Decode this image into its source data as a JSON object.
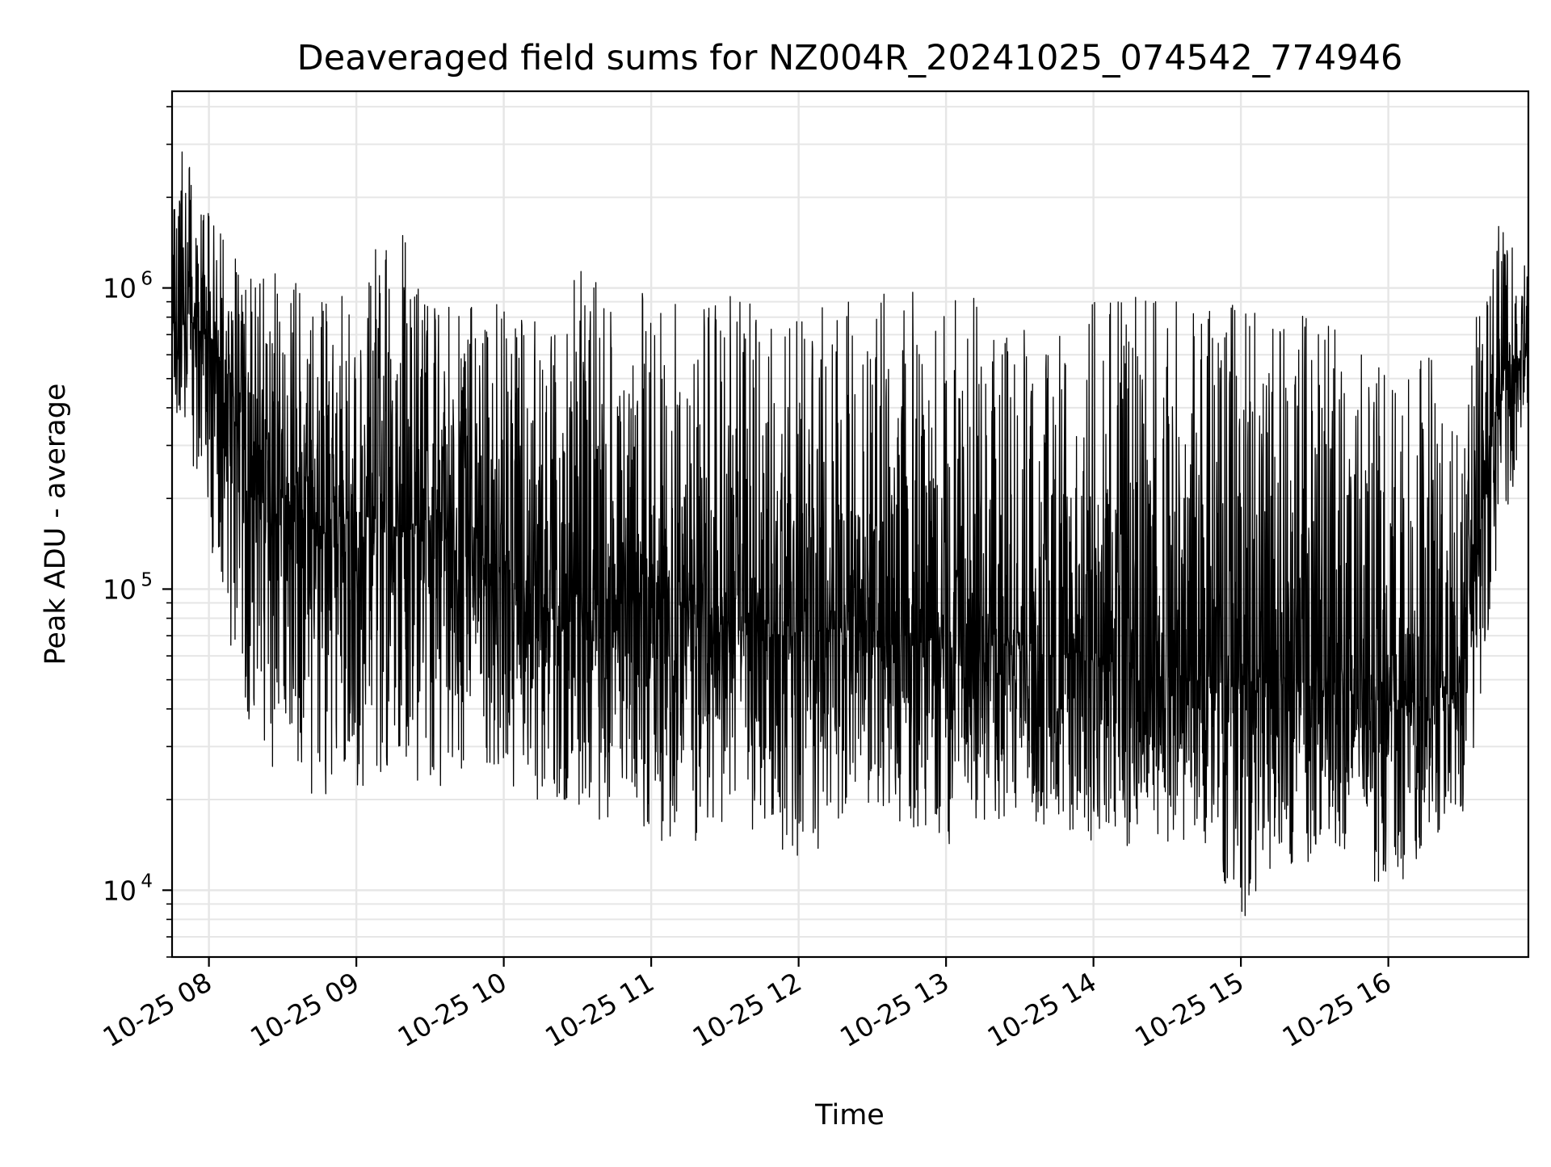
{
  "chart_data": {
    "type": "line",
    "title": "Deaveraged field sums for NZ004R_20241025_074542_774946",
    "xlabel": "Time",
    "ylabel": "Peak ADU - average",
    "xlim": [
      "2024-10-25 07:45",
      "2024-10-25 16:57"
    ],
    "yscale": "log",
    "ylim": [
      6000,
      4500000
    ],
    "grid": true,
    "legend": "none",
    "colors": {
      "line": "#000000",
      "grid": "#e6e6e6",
      "frame": "#000000",
      "background": "#ffffff"
    },
    "x_ticks": [
      {
        "t": "2024-10-25 08:00",
        "label": "10-25 08"
      },
      {
        "t": "2024-10-25 09:00",
        "label": "10-25 09"
      },
      {
        "t": "2024-10-25 10:00",
        "label": "10-25 10"
      },
      {
        "t": "2024-10-25 11:00",
        "label": "10-25 11"
      },
      {
        "t": "2024-10-25 12:00",
        "label": "10-25 12"
      },
      {
        "t": "2024-10-25 13:00",
        "label": "10-25 13"
      },
      {
        "t": "2024-10-25 14:00",
        "label": "10-25 14"
      },
      {
        "t": "2024-10-25 15:00",
        "label": "10-25 15"
      },
      {
        "t": "2024-10-25 16:00",
        "label": "10-25 16"
      }
    ],
    "y_ticks": [
      {
        "value": 10000,
        "base": "10",
        "exp": "4"
      },
      {
        "value": 100000,
        "base": "10",
        "exp": "5"
      },
      {
        "value": 1000000,
        "base": "10",
        "exp": "6"
      }
    ],
    "series": [
      {
        "x": [
          "2024-10-25 07:45",
          "2024-10-25 08:00",
          "2024-10-25 08:15",
          "2024-10-25 08:30",
          "2024-10-25 08:45",
          "2024-10-25 09:00",
          "2024-10-25 09:15",
          "2024-10-25 09:30",
          "2024-10-25 09:45",
          "2024-10-25 10:00",
          "2024-10-25 10:15",
          "2024-10-25 10:30",
          "2024-10-25 10:45",
          "2024-10-25 11:00",
          "2024-10-25 11:15",
          "2024-10-25 11:30",
          "2024-10-25 11:45",
          "2024-10-25 12:00",
          "2024-10-25 12:15",
          "2024-10-25 12:30",
          "2024-10-25 12:45",
          "2024-10-25 13:00",
          "2024-10-25 13:15",
          "2024-10-25 13:30",
          "2024-10-25 13:45",
          "2024-10-25 14:00",
          "2024-10-25 14:15",
          "2024-10-25 14:30",
          "2024-10-25 14:45",
          "2024-10-25 15:00",
          "2024-10-25 15:15",
          "2024-10-25 15:30",
          "2024-10-25 15:45",
          "2024-10-25 16:00",
          "2024-10-25 16:15",
          "2024-10-25 16:30",
          "2024-10-25 16:45",
          "2024-10-25 16:57"
        ],
        "y_center": [
          850000,
          700000,
          350000,
          200000,
          150000,
          180000,
          160000,
          150000,
          140000,
          110000,
          90000,
          80000,
          95000,
          100000,
          85000,
          75000,
          70000,
          70000,
          75000,
          70000,
          65000,
          70000,
          70000,
          65000,
          60000,
          62000,
          55000,
          52000,
          50000,
          50000,
          52000,
          48000,
          45000,
          42000,
          45000,
          50000,
          500000,
          650000
        ],
        "y_low": [
          400000,
          150000,
          35000,
          20000,
          20000,
          20000,
          25000,
          20000,
          25000,
          22000,
          18000,
          17000,
          17000,
          14000,
          14000,
          17000,
          15000,
          11500,
          15000,
          17000,
          16000,
          13500,
          17000,
          17000,
          16000,
          14000,
          14000,
          14000,
          14000,
          7800,
          12000,
          12000,
          14000,
          9000,
          14000,
          14000,
          130000,
          380000
        ],
        "y_high": [
          3500000,
          1900000,
          1100000,
          1200000,
          1000000,
          1000000,
          1800000,
          1000000,
          900000,
          900000,
          800000,
          1200000,
          1000000,
          1000000,
          900000,
          1000000,
          900000,
          900000,
          900000,
          1000000,
          1000000,
          950000,
          950000,
          1000000,
          900000,
          950000,
          950000,
          900000,
          900000,
          950000,
          900000,
          800000,
          700000,
          500000,
          600000,
          550000,
          1700000,
          1500000
        ]
      }
    ]
  }
}
